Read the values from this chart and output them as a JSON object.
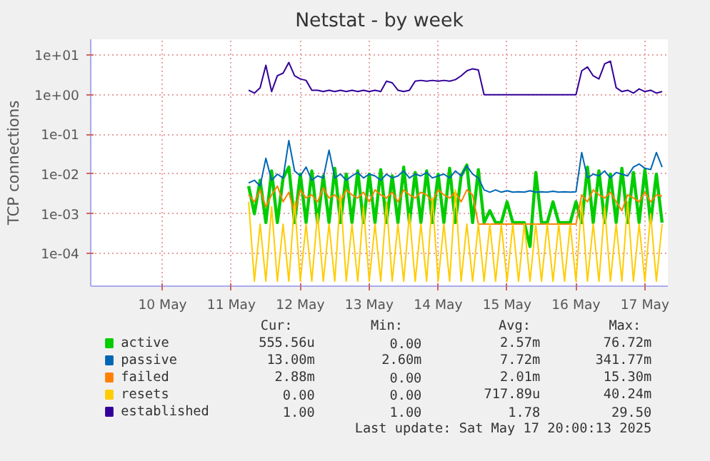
{
  "chart_data": {
    "type": "line",
    "title": "Netstat - by week",
    "ylabel": "TCP connections",
    "log": "y",
    "xlim": [
      "2025-05-09T11:00",
      "2025-05-17T20:00"
    ],
    "xticks": [
      {
        "value": "2025-05-10T12:00",
        "label": "10 May"
      },
      {
        "value": "2025-05-11T12:00",
        "label": "11 May"
      },
      {
        "value": "2025-05-12T12:00",
        "label": "12 May"
      },
      {
        "value": "2025-05-13T12:00",
        "label": "13 May"
      },
      {
        "value": "2025-05-14T12:00",
        "label": "14 May"
      },
      {
        "value": "2025-05-15T12:00",
        "label": "15 May"
      },
      {
        "value": "2025-05-16T12:00",
        "label": "16 May"
      },
      {
        "value": "2025-05-17T12:00",
        "label": "17 May"
      }
    ],
    "ylim": [
      1.5e-05,
      25
    ],
    "yticks": [
      {
        "value": 0.0001,
        "label": "1e-04"
      },
      {
        "value": 0.001,
        "label": "1e-03"
      },
      {
        "value": 0.01,
        "label": "1e-02"
      },
      {
        "value": 0.1,
        "label": "1e-01"
      },
      {
        "value": 1,
        "label": "1e+00"
      },
      {
        "value": 10,
        "label": "1e+01"
      }
    ],
    "grid": true,
    "legend": "bottom",
    "line_style": "solid",
    "series": [
      {
        "name": "active",
        "color": "#00cc00",
        "values": [
          0.005,
          0.001,
          0.007,
          0.0006,
          0.012,
          0.0006,
          0.008,
          0.015,
          0.0006,
          0.01,
          0.0006,
          0.012,
          0.0006,
          0.009,
          0.0006,
          0.014,
          0.0006,
          0.01,
          0.0006,
          0.012,
          0.0006,
          0.01,
          0.0006,
          0.013,
          0.0006,
          0.009,
          0.0006,
          0.015,
          0.0006,
          0.011,
          0.0006,
          0.012,
          0.0006,
          0.01,
          0.0006,
          0.014,
          0.0006,
          0.009,
          0.017,
          0.0006,
          0.013,
          0.0006,
          0.0012,
          0.0006,
          0.0006,
          0.002,
          0.0006,
          0.0006,
          0.0006,
          0.00015,
          0.011,
          0.0006,
          0.0006,
          0.002,
          0.0006,
          0.0006,
          0.0006,
          0.002,
          0.0006,
          0.015,
          0.0006,
          0.012,
          0.0006,
          0.01,
          0.0006,
          0.014,
          0.0006,
          0.011,
          0.0006,
          0.013,
          0.0006,
          0.01,
          0.0006
        ]
      },
      {
        "name": "passive",
        "color": "#0066b3",
        "values": [
          0.006,
          0.007,
          0.005,
          0.025,
          0.007,
          0.01,
          0.008,
          0.07,
          0.012,
          0.009,
          0.015,
          0.007,
          0.009,
          0.008,
          0.04,
          0.008,
          0.01,
          0.007,
          0.009,
          0.011,
          0.008,
          0.01,
          0.009,
          0.007,
          0.01,
          0.008,
          0.009,
          0.012,
          0.008,
          0.01,
          0.009,
          0.011,
          0.008,
          0.009,
          0.01,
          0.008,
          0.012,
          0.009,
          0.016,
          0.01,
          0.008,
          0.004,
          0.0035,
          0.004,
          0.0035,
          0.0038,
          0.0035,
          0.0036,
          0.0035,
          0.0038,
          0.0035,
          0.0036,
          0.0035,
          0.0037,
          0.0035,
          0.0036,
          0.0035,
          0.0036,
          0.035,
          0.008,
          0.01,
          0.009,
          0.012,
          0.008,
          0.011,
          0.01,
          0.009,
          0.015,
          0.018,
          0.014,
          0.013,
          0.035,
          0.015
        ]
      },
      {
        "name": "failed",
        "color": "#ff8000",
        "values": [
          0.003,
          0.002,
          0.004,
          0.0015,
          0.003,
          0.005,
          0.002,
          0.0035,
          0.001,
          0.004,
          0.0025,
          0.003,
          0.002,
          0.0045,
          0.0025,
          0.003,
          0.002,
          0.004,
          0.003,
          0.0025,
          0.0035,
          0.002,
          0.004,
          0.003,
          0.0025,
          0.0035,
          0.002,
          0.004,
          0.003,
          0.0025,
          0.0035,
          0.003,
          0.002,
          0.004,
          0.003,
          0.0025,
          0.0035,
          0.002,
          0.004,
          0.003,
          0.00055,
          0.00055,
          0.00055,
          0.00055,
          0.00055,
          0.00055,
          0.00055,
          0.00055,
          0.00055,
          0.00055,
          0.00055,
          0.00055,
          0.00055,
          0.00055,
          0.00055,
          0.00055,
          0.00055,
          0.00055,
          0.003,
          0.002,
          0.004,
          0.003,
          0.0025,
          0.0035,
          0.002,
          0.0012,
          0.003,
          0.0025,
          0.002,
          0.0035,
          0.002,
          0.003,
          0.0028
        ]
      },
      {
        "name": "resets",
        "color": "#ffcc00",
        "values": [
          0.002,
          2e-05,
          0.00055,
          2e-05,
          0.0015,
          2e-05,
          0.00055,
          2e-05,
          0.002,
          2e-05,
          0.00055,
          2e-05,
          0.001,
          2e-05,
          0.00055,
          2e-05,
          0.003,
          2e-05,
          0.00055,
          2e-05,
          0.0015,
          2e-05,
          0.00055,
          2e-05,
          0.002,
          2e-05,
          0.00055,
          2e-05,
          0.001,
          2e-05,
          0.00055,
          2e-05,
          0.0025,
          2e-05,
          0.00055,
          2e-05,
          0.004,
          2e-05,
          0.00055,
          2e-05,
          0.00055,
          2e-05,
          0.00055,
          2e-05,
          0.00055,
          2e-05,
          0.00055,
          2e-05,
          0.00055,
          2e-05,
          0.00055,
          2e-05,
          0.00055,
          2e-05,
          0.00055,
          2e-05,
          0.00055,
          2e-05,
          0.002,
          2e-05,
          0.00055,
          2e-05,
          0.0015,
          2e-05,
          0.00055,
          2e-05,
          0.002,
          2e-05,
          0.00055,
          2e-05,
          0.001,
          2e-05,
          0.00055
        ]
      },
      {
        "name": "established",
        "color": "#330099",
        "values": [
          1.3,
          1.1,
          1.5,
          5.5,
          1.2,
          3,
          3.5,
          6.5,
          3,
          2.5,
          2.3,
          1.3,
          1.3,
          1.2,
          1.3,
          1.2,
          1.3,
          1.2,
          1.3,
          1.2,
          1.3,
          1.2,
          1.3,
          1.2,
          2.2,
          2.0,
          1.3,
          1.2,
          1.3,
          2.2,
          2.3,
          2.2,
          2.3,
          2.2,
          2.3,
          2.2,
          2.4,
          3,
          4,
          4.5,
          4.2,
          1.0,
          1.0,
          1.0,
          1.0,
          1.0,
          1.0,
          1.0,
          1.0,
          1.0,
          1.0,
          1.0,
          1.0,
          1.0,
          1.0,
          1.0,
          1.0,
          1.0,
          4,
          5,
          3,
          2.5,
          6,
          7,
          1.5,
          1.2,
          1.3,
          1.1,
          1.4,
          1.2,
          1.3,
          1.1,
          1.2
        ]
      }
    ],
    "x": [
      "2025-05-11T18:00",
      "2025-05-11T20:00",
      "2025-05-11T22:00",
      "2025-05-12T00:00",
      "2025-05-12T02:00",
      "2025-05-12T04:00",
      "2025-05-12T06:00",
      "2025-05-12T08:00",
      "2025-05-12T10:00",
      "2025-05-12T12:00",
      "2025-05-12T14:00",
      "2025-05-12T16:00",
      "2025-05-12T18:00",
      "2025-05-12T20:00",
      "2025-05-12T22:00",
      "2025-05-13T00:00",
      "2025-05-13T02:00",
      "2025-05-13T04:00",
      "2025-05-13T06:00",
      "2025-05-13T08:00",
      "2025-05-13T10:00",
      "2025-05-13T12:00",
      "2025-05-13T14:00",
      "2025-05-13T16:00",
      "2025-05-13T18:00",
      "2025-05-13T20:00",
      "2025-05-13T22:00",
      "2025-05-14T00:00",
      "2025-05-14T02:00",
      "2025-05-14T04:00",
      "2025-05-14T06:00",
      "2025-05-14T08:00",
      "2025-05-14T10:00",
      "2025-05-14T12:00",
      "2025-05-14T14:00",
      "2025-05-14T16:00",
      "2025-05-14T18:00",
      "2025-05-14T20:00",
      "2025-05-14T22:00",
      "2025-05-15T00:00",
      "2025-05-15T02:00",
      "2025-05-15T04:00",
      "2025-05-15T06:00",
      "2025-05-15T08:00",
      "2025-05-15T10:00",
      "2025-05-15T12:00",
      "2025-05-15T14:00",
      "2025-05-15T16:00",
      "2025-05-15T18:00",
      "2025-05-15T20:00",
      "2025-05-15T22:00",
      "2025-05-16T00:00",
      "2025-05-16T02:00",
      "2025-05-16T04:00",
      "2025-05-16T06:00",
      "2025-05-16T08:00",
      "2025-05-16T10:00",
      "2025-05-16T12:00",
      "2025-05-16T14:00",
      "2025-05-16T16:00",
      "2025-05-16T18:00",
      "2025-05-16T20:00",
      "2025-05-16T22:00",
      "2025-05-17T00:00",
      "2025-05-17T02:00",
      "2025-05-17T04:00",
      "2025-05-17T06:00",
      "2025-05-17T08:00",
      "2025-05-17T10:00",
      "2025-05-17T12:00",
      "2025-05-17T14:00",
      "2025-05-17T16:00",
      "2025-05-17T18:00"
    ],
    "annotations": [
      "Cur:",
      "Min:",
      "Avg:",
      "Max:",
      "555.56u",
      "0.00",
      "2.57m",
      "76.72m",
      "13.00m",
      "2.60m",
      "7.72m",
      "341.77m",
      "2.88m",
      "0.00",
      "2.01m",
      "15.30m",
      "0.00",
      "0.00",
      "717.89u",
      "40.24m",
      "1.00",
      "1.00",
      "1.78",
      "29.50",
      "Last update: Sat May 17 20:00:13 2025"
    ]
  }
}
